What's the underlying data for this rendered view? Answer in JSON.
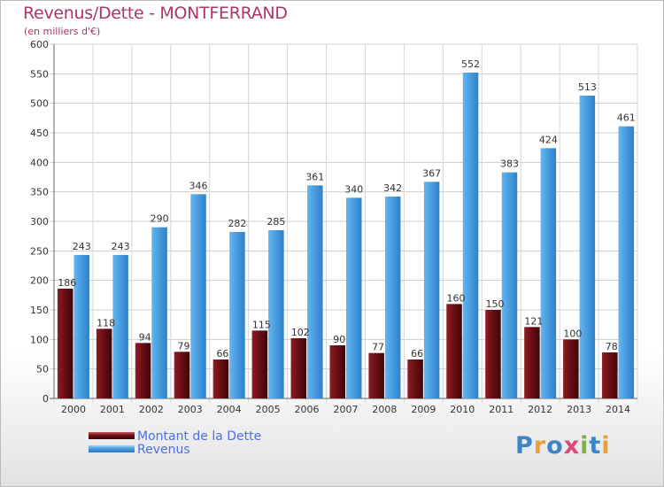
{
  "header": {
    "title": "Revenus/Dette - MONTFERRAND",
    "subtitle": "(en milliers d'€)"
  },
  "legend": {
    "items": [
      {
        "label": "Montant de la Dette",
        "color": "#6b0f15"
      },
      {
        "label": "Revenus",
        "color": "#4a9ee0"
      }
    ]
  },
  "logo": {
    "text": "Proxiti"
  },
  "chart_data": {
    "type": "bar",
    "title": "Revenus/Dette - MONTFERRAND",
    "subtitle": "(en milliers d'€)",
    "categories": [
      "2000",
      "2001",
      "2002",
      "2003",
      "2004",
      "2005",
      "2006",
      "2007",
      "2008",
      "2009",
      "2010",
      "2011",
      "2012",
      "2013",
      "2014"
    ],
    "series": [
      {
        "name": "Montant de la Dette",
        "color": "#6b0f15",
        "values": [
          186,
          118,
          94,
          79,
          66,
          115,
          102,
          90,
          77,
          66,
          160,
          150,
          121,
          100,
          78
        ]
      },
      {
        "name": "Revenus",
        "color": "#4a9ee0",
        "values": [
          243,
          243,
          290,
          346,
          282,
          285,
          361,
          340,
          342,
          367,
          552,
          383,
          424,
          513,
          461
        ]
      }
    ],
    "ylim": [
      0,
      600
    ],
    "yticks": [
      0,
      50,
      100,
      150,
      200,
      250,
      300,
      350,
      400,
      450,
      500,
      550,
      600
    ],
    "grid": true,
    "legend_position": "bottom-left"
  }
}
